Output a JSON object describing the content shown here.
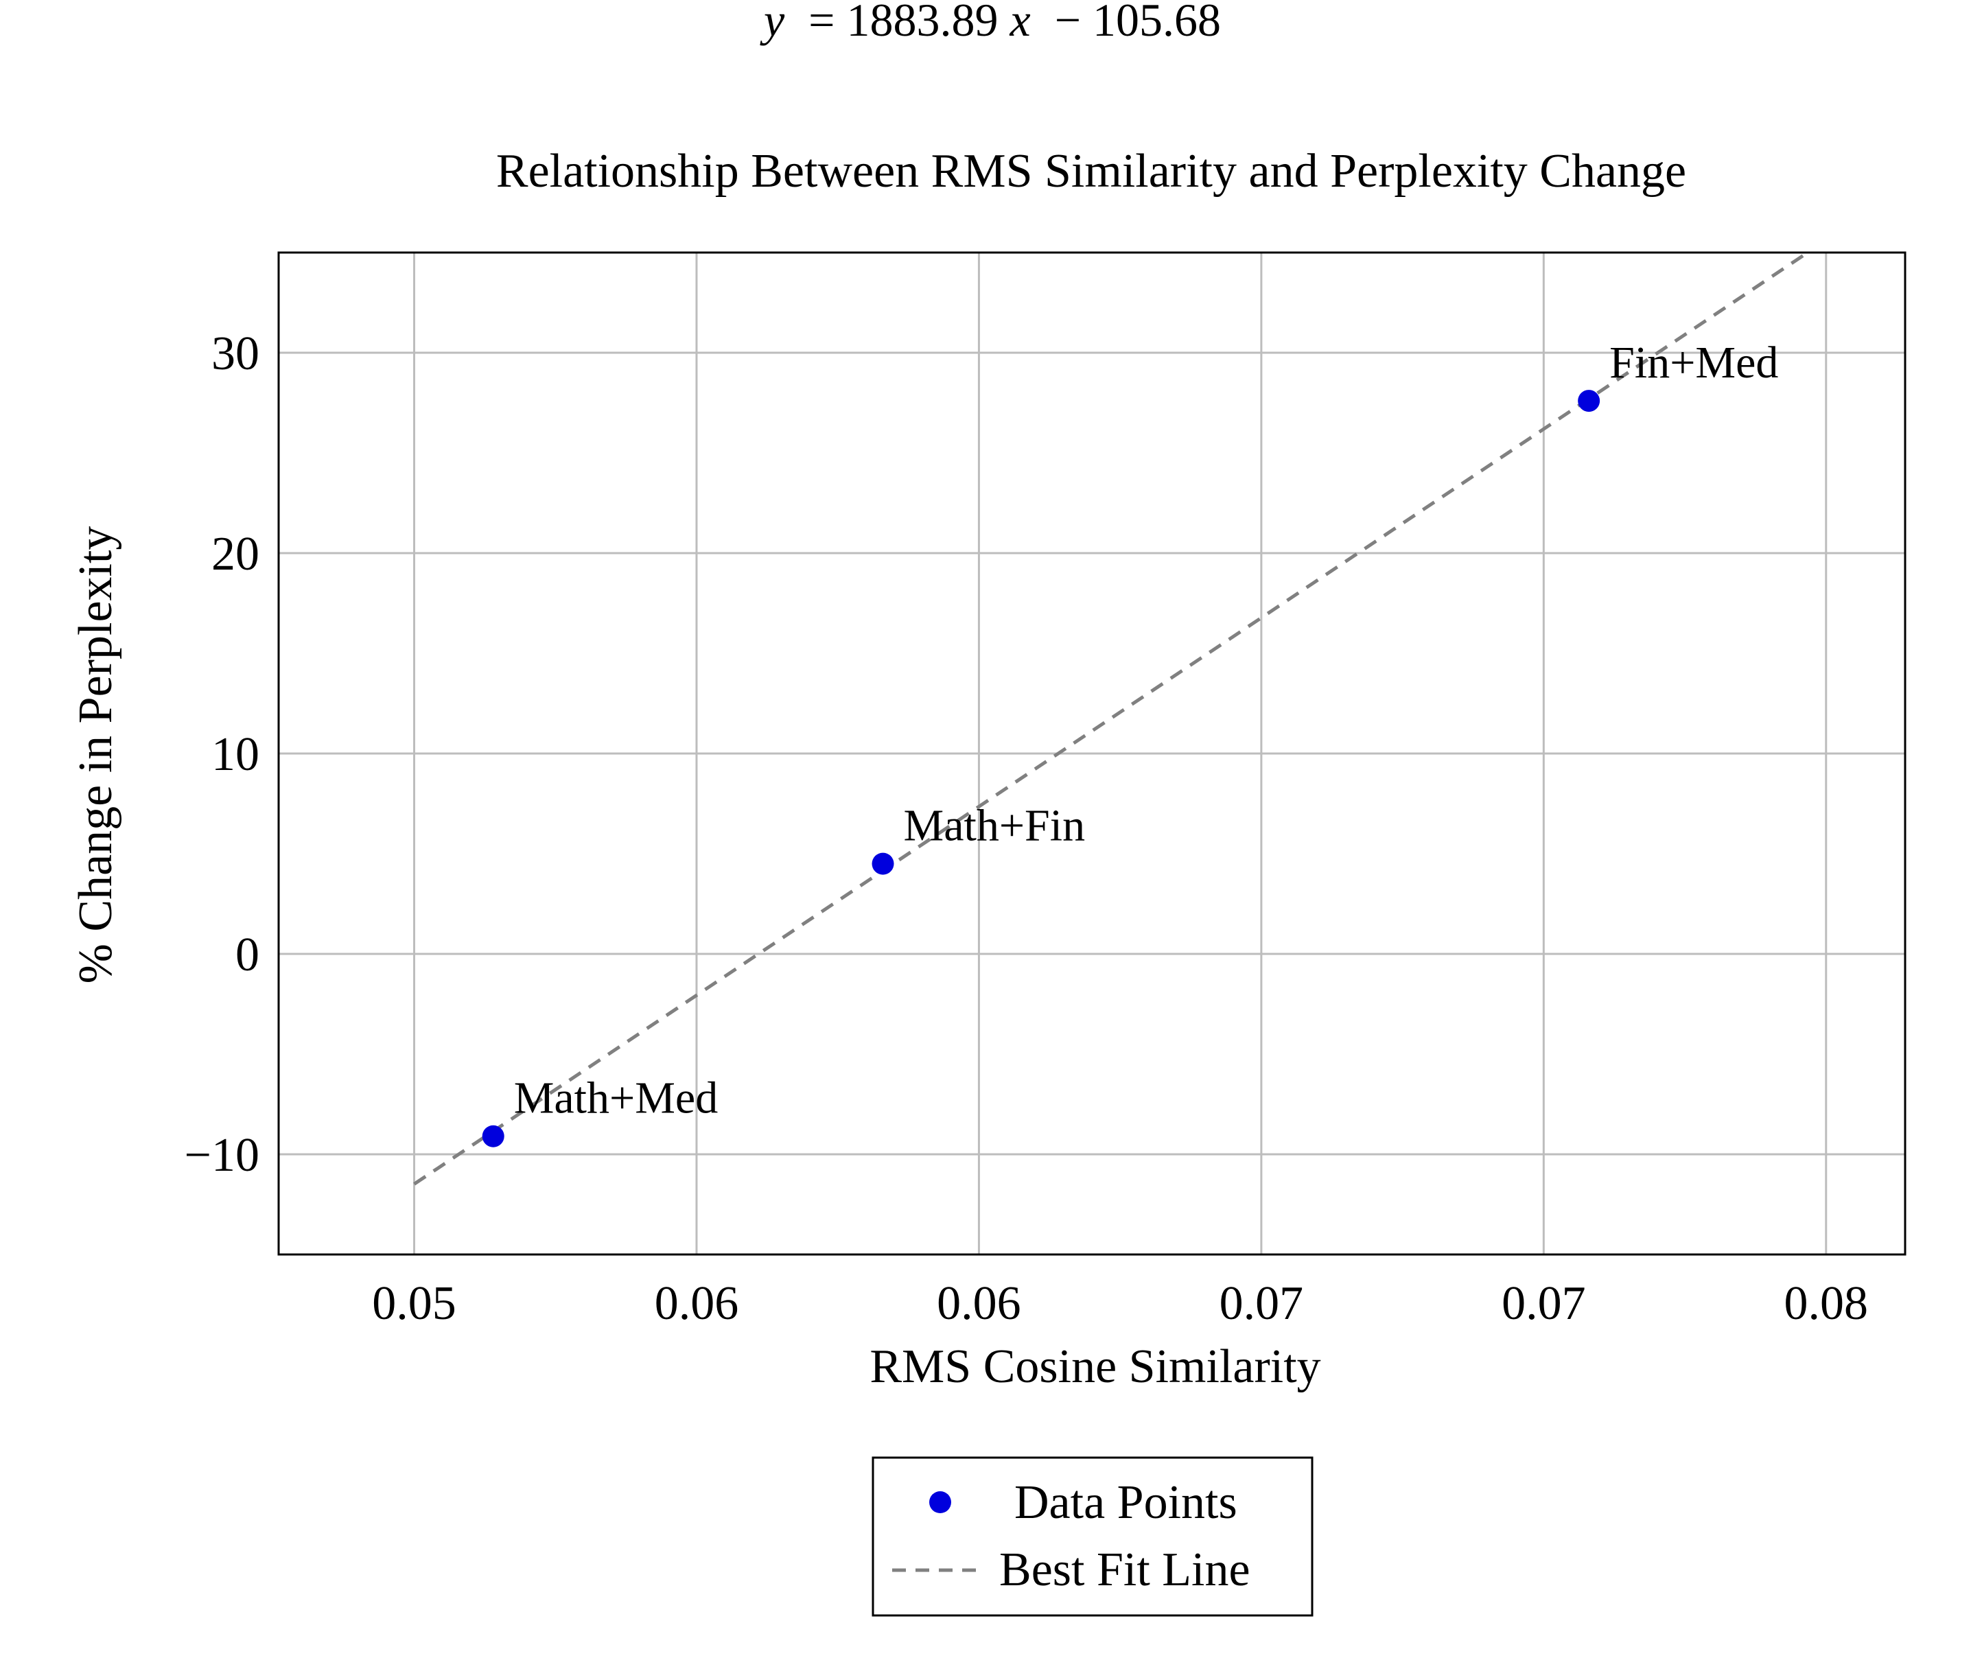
{
  "chart_data": {
    "type": "scatter",
    "equation": {
      "prefix": "y",
      "body": "= 1883.89",
      "var": "x",
      "suffix": "− 105.68"
    },
    "title": "Relationship Between RMS Similarity and Perplexity Change",
    "xlabel": "RMS Cosine Similarity",
    "ylabel": "% Change in Perplexity",
    "xlim": [
      0.0476,
      0.0764
    ],
    "ylim": [
      -15,
      35
    ],
    "grid": true,
    "x_ticks": [
      {
        "value": 0.05,
        "label": "0.05"
      },
      {
        "value": 0.055,
        "label": "0.06"
      },
      {
        "value": 0.06,
        "label": "0.06"
      },
      {
        "value": 0.065,
        "label": "0.07"
      },
      {
        "value": 0.07,
        "label": "0.07"
      },
      {
        "value": 0.075,
        "label": "0.08"
      }
    ],
    "y_ticks": [
      {
        "value": -10,
        "label": "−10"
      },
      {
        "value": 0,
        "label": "0"
      },
      {
        "value": 10,
        "label": "10"
      },
      {
        "value": 20,
        "label": "20"
      },
      {
        "value": 30,
        "label": "30"
      }
    ],
    "series": [
      {
        "name": "Data Points",
        "kind": "scatter",
        "color": "#0000dd",
        "points": [
          {
            "x": 0.0514,
            "y": -9.1,
            "label": "Math+Med"
          },
          {
            "x": 0.0583,
            "y": 4.5,
            "label": "Math+Fin"
          },
          {
            "x": 0.0708,
            "y": 27.6,
            "label": "Fin+Med"
          }
        ]
      },
      {
        "name": "Best Fit Line",
        "kind": "line",
        "style": "dashed",
        "color": "#808080",
        "slope": 1883.89,
        "intercept": -105.68,
        "x_range": [
          0.05,
          0.075
        ]
      }
    ],
    "legend": {
      "position": "bottom-center"
    }
  }
}
